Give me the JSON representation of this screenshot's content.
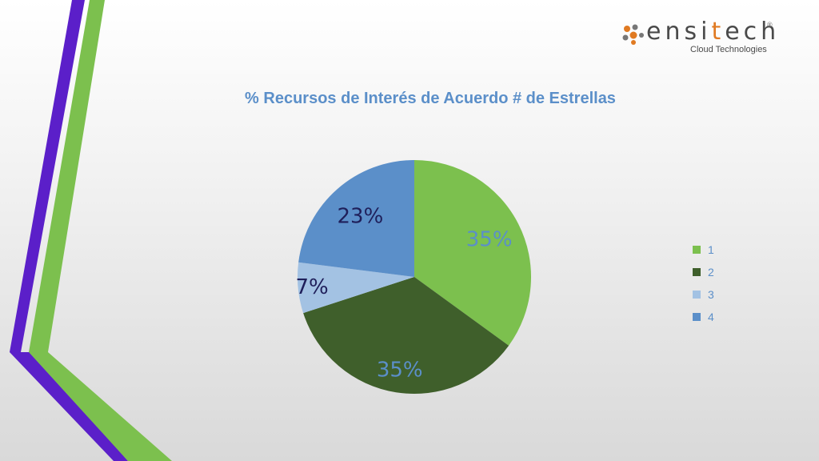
{
  "logo": {
    "word_before": "ensi",
    "word_highlight": "t",
    "word_after": "ech",
    "registered": "®",
    "tagline": "Cloud Technologies",
    "colors": {
      "orange": "#e07a22",
      "grey": "#4a4a4a"
    }
  },
  "chart_data": {
    "type": "pie",
    "title": "% Recursos de Interés de Acuerdo # de Estrellas",
    "categories": [
      "1",
      "2",
      "3",
      "4"
    ],
    "values": [
      35,
      35,
      7,
      23
    ],
    "labels": [
      "35%",
      "35%",
      "7%",
      "23%"
    ],
    "colors": [
      "#7cc04e",
      "#3f5f2b",
      "#a3c2e3",
      "#5b8fc9"
    ],
    "label_colors": [
      "#5b8fc9",
      "#5b8fc9",
      "#1f1f5a",
      "#1f1f5a"
    ],
    "legend_position": "right"
  },
  "theme": {
    "accent_purple": "#5b1fc9",
    "accent_green": "#7cc04e"
  }
}
